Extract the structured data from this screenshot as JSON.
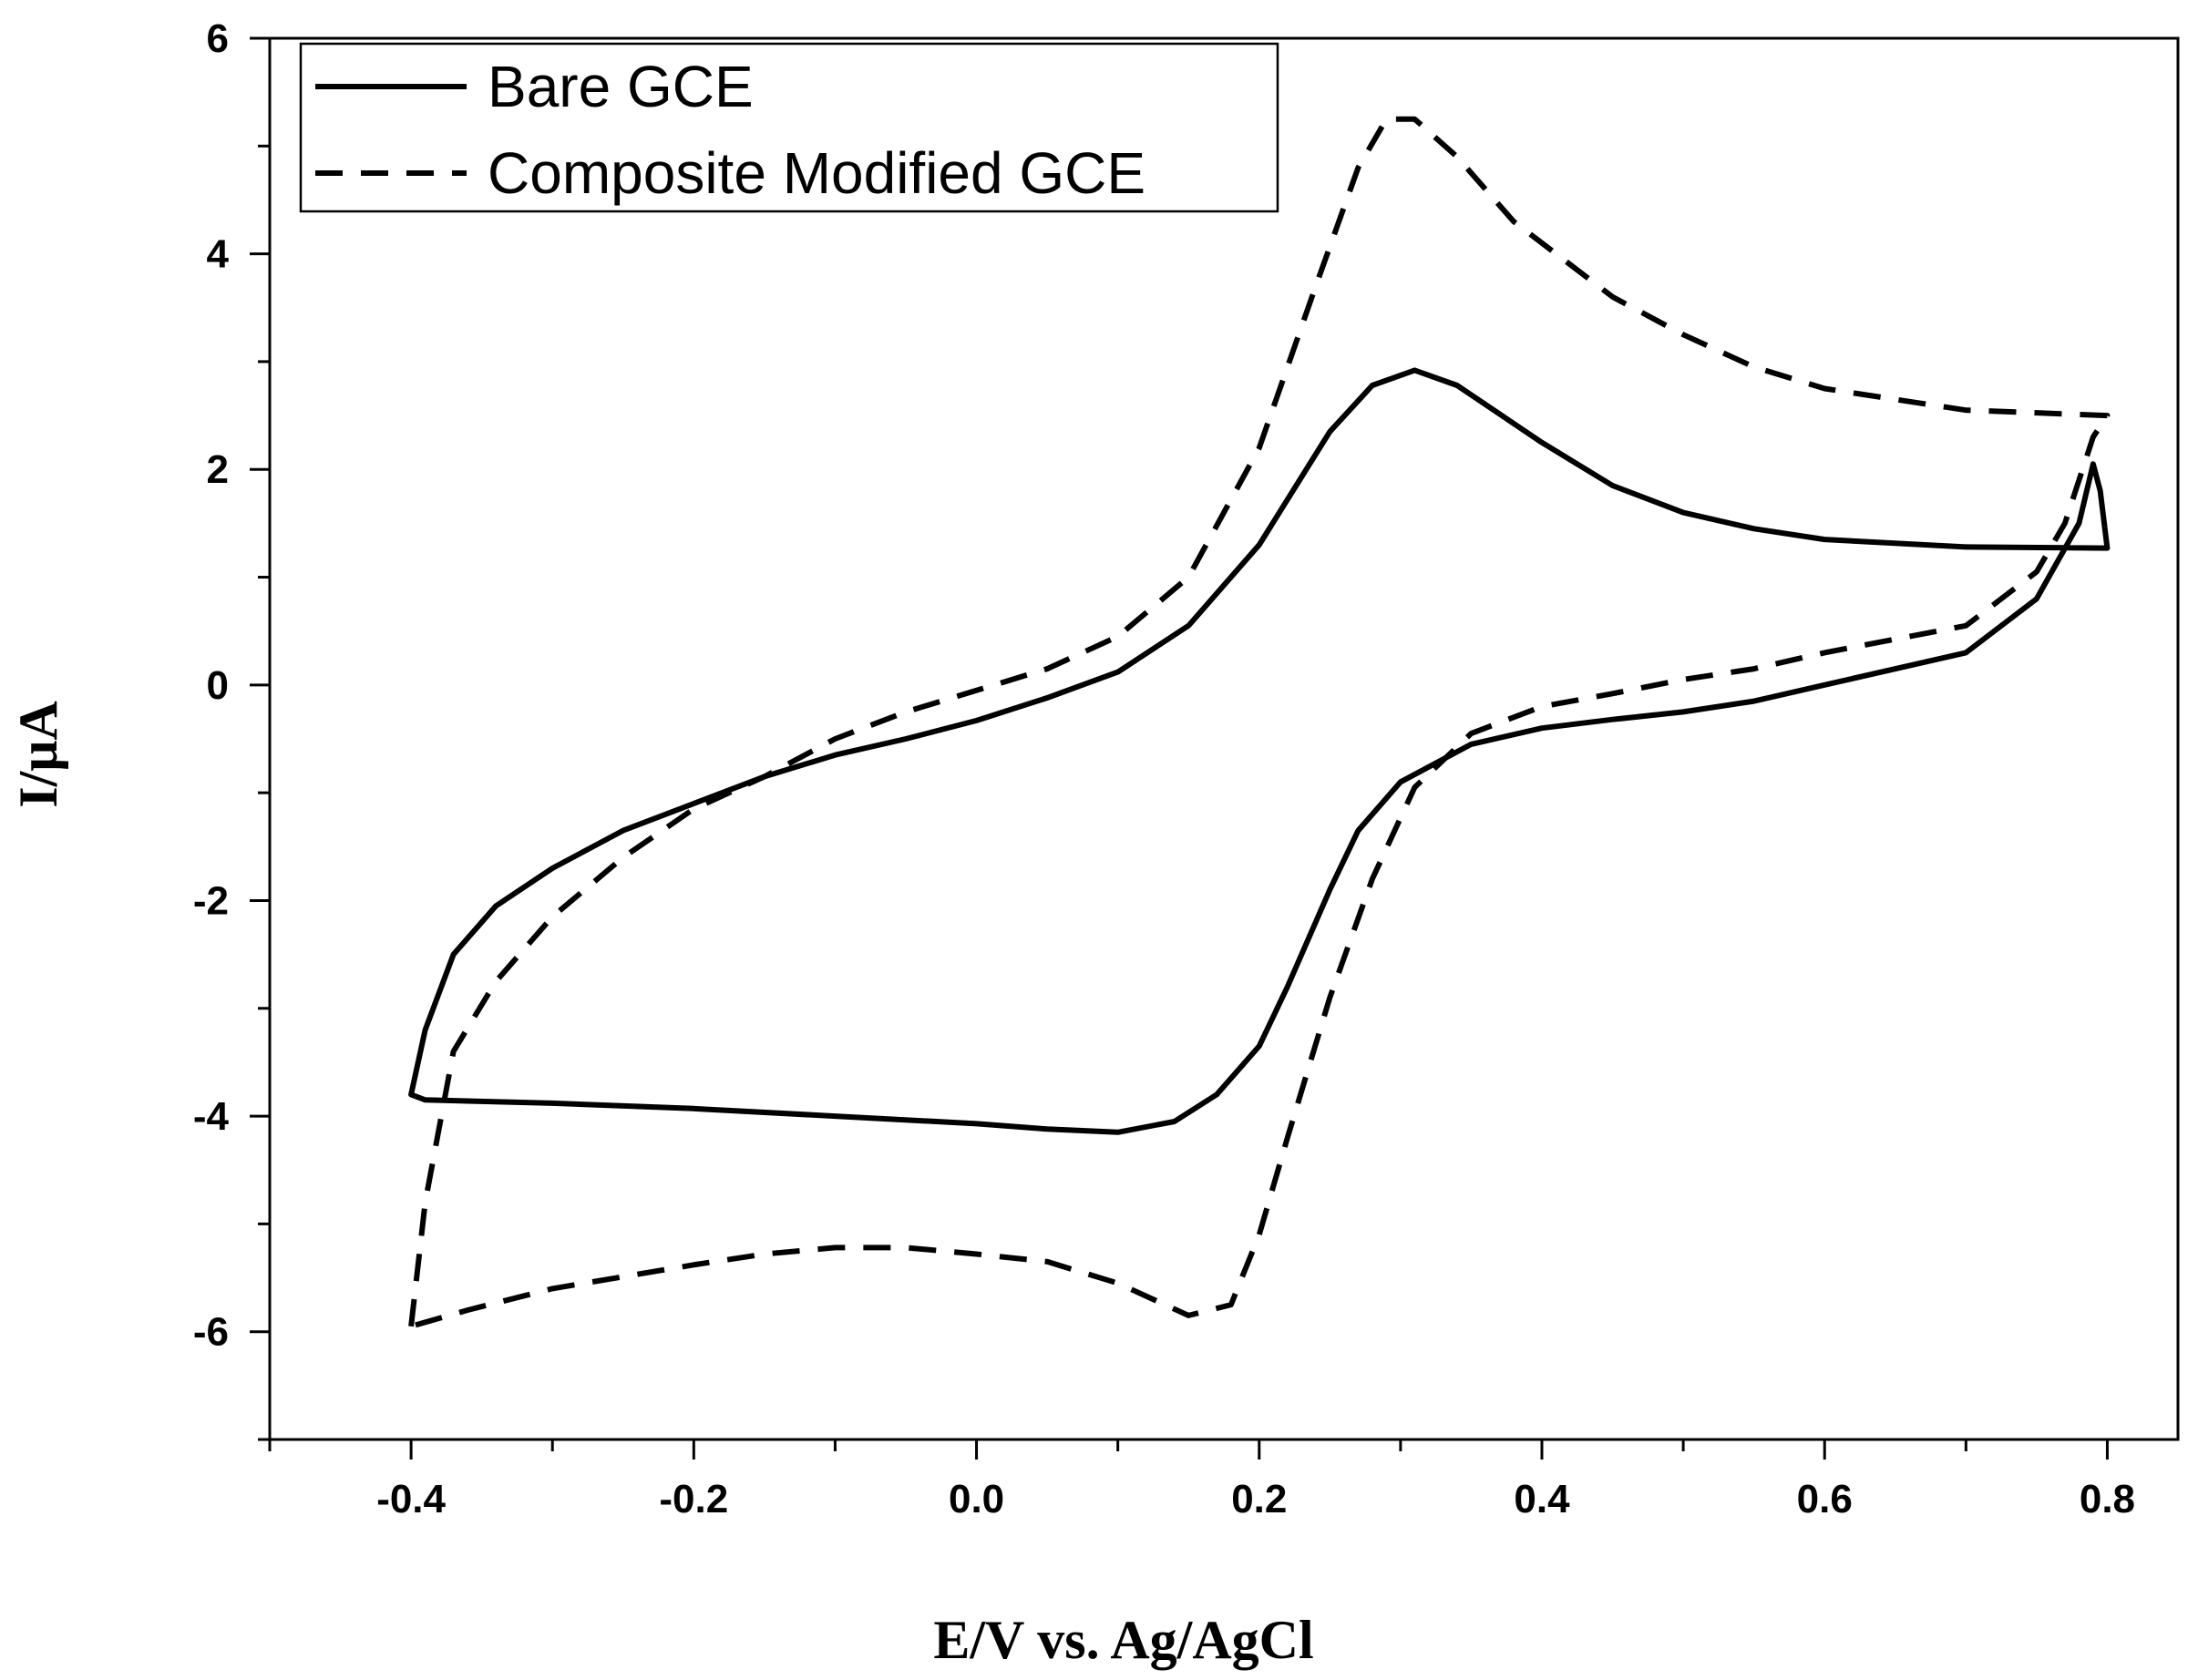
{
  "chart_data": {
    "type": "line",
    "title": "",
    "xlabel": "E/V vs. Ag/AgCl",
    "ylabel": "I/μA",
    "xlim": [
      -0.5,
      0.85
    ],
    "ylim": [
      -7,
      6
    ],
    "x_ticks": [
      "-0.4",
      "-0.2",
      "0.0",
      "0.2",
      "0.4",
      "0.6",
      "0.8"
    ],
    "x_tick_values": [
      -0.4,
      -0.2,
      0.0,
      0.2,
      0.4,
      0.6,
      0.8
    ],
    "y_ticks": [
      "6",
      "4",
      "2",
      "0",
      "-2",
      "-4",
      "-6"
    ],
    "y_tick_values": [
      6,
      4,
      2,
      0,
      -2,
      -4,
      -6
    ],
    "grid": false,
    "legend_position": "top-left",
    "series": [
      {
        "name": "Bare GCE",
        "line_style": "solid",
        "color": "#000000",
        "points": [
          [
            -0.4,
            -3.8
          ],
          [
            -0.39,
            -3.2
          ],
          [
            -0.37,
            -2.5
          ],
          [
            -0.34,
            -2.05
          ],
          [
            -0.3,
            -1.7
          ],
          [
            -0.25,
            -1.35
          ],
          [
            -0.2,
            -1.1
          ],
          [
            -0.15,
            -0.85
          ],
          [
            -0.1,
            -0.65
          ],
          [
            -0.05,
            -0.5
          ],
          [
            0.0,
            -0.33
          ],
          [
            0.05,
            -0.12
          ],
          [
            0.1,
            0.12
          ],
          [
            0.15,
            0.55
          ],
          [
            0.2,
            1.3
          ],
          [
            0.25,
            2.35
          ],
          [
            0.28,
            2.78
          ],
          [
            0.31,
            2.92
          ],
          [
            0.34,
            2.78
          ],
          [
            0.4,
            2.25
          ],
          [
            0.45,
            1.85
          ],
          [
            0.5,
            1.6
          ],
          [
            0.55,
            1.45
          ],
          [
            0.6,
            1.35
          ],
          [
            0.7,
            1.28
          ],
          [
            0.8,
            1.27
          ],
          [
            0.795,
            1.8
          ],
          [
            0.79,
            2.05
          ],
          [
            0.78,
            1.5
          ],
          [
            0.75,
            0.8
          ],
          [
            0.7,
            0.3
          ],
          [
            0.6,
            0.0
          ],
          [
            0.55,
            -0.15
          ],
          [
            0.5,
            -0.25
          ],
          [
            0.45,
            -0.32
          ],
          [
            0.4,
            -0.4
          ],
          [
            0.35,
            -0.55
          ],
          [
            0.3,
            -0.9
          ],
          [
            0.27,
            -1.35
          ],
          [
            0.25,
            -1.9
          ],
          [
            0.22,
            -2.8
          ],
          [
            0.2,
            -3.35
          ],
          [
            0.17,
            -3.8
          ],
          [
            0.14,
            -4.05
          ],
          [
            0.1,
            -4.15
          ],
          [
            0.05,
            -4.12
          ],
          [
            0.0,
            -4.07
          ],
          [
            -0.1,
            -4.0
          ],
          [
            -0.2,
            -3.93
          ],
          [
            -0.3,
            -3.88
          ],
          [
            -0.39,
            -3.85
          ],
          [
            -0.4,
            -3.8
          ]
        ]
      },
      {
        "name": "Composite Modified GCE",
        "line_style": "dashed",
        "color": "#000000",
        "points": [
          [
            -0.4,
            -5.95
          ],
          [
            -0.39,
            -4.8
          ],
          [
            -0.37,
            -3.4
          ],
          [
            -0.34,
            -2.75
          ],
          [
            -0.3,
            -2.15
          ],
          [
            -0.25,
            -1.6
          ],
          [
            -0.2,
            -1.15
          ],
          [
            -0.15,
            -0.85
          ],
          [
            -0.1,
            -0.5
          ],
          [
            -0.05,
            -0.25
          ],
          [
            0.0,
            -0.05
          ],
          [
            0.05,
            0.15
          ],
          [
            0.1,
            0.45
          ],
          [
            0.15,
            1.0
          ],
          [
            0.2,
            2.2
          ],
          [
            0.24,
            3.7
          ],
          [
            0.27,
            4.8
          ],
          [
            0.29,
            5.25
          ],
          [
            0.31,
            5.25
          ],
          [
            0.34,
            4.9
          ],
          [
            0.38,
            4.3
          ],
          [
            0.45,
            3.6
          ],
          [
            0.5,
            3.25
          ],
          [
            0.55,
            2.95
          ],
          [
            0.6,
            2.75
          ],
          [
            0.7,
            2.55
          ],
          [
            0.8,
            2.5
          ],
          [
            0.79,
            2.3
          ],
          [
            0.77,
            1.5
          ],
          [
            0.75,
            1.05
          ],
          [
            0.7,
            0.55
          ],
          [
            0.6,
            0.3
          ],
          [
            0.55,
            0.15
          ],
          [
            0.5,
            0.05
          ],
          [
            0.45,
            -0.08
          ],
          [
            0.4,
            -0.2
          ],
          [
            0.35,
            -0.45
          ],
          [
            0.31,
            -0.95
          ],
          [
            0.28,
            -1.8
          ],
          [
            0.25,
            -2.9
          ],
          [
            0.22,
            -4.2
          ],
          [
            0.2,
            -5.1
          ],
          [
            0.18,
            -5.75
          ],
          [
            0.15,
            -5.85
          ],
          [
            0.1,
            -5.55
          ],
          [
            0.05,
            -5.35
          ],
          [
            0.0,
            -5.28
          ],
          [
            -0.05,
            -5.22
          ],
          [
            -0.1,
            -5.22
          ],
          [
            -0.15,
            -5.28
          ],
          [
            -0.2,
            -5.38
          ],
          [
            -0.3,
            -5.6
          ],
          [
            -0.36,
            -5.8
          ],
          [
            -0.4,
            -5.95
          ]
        ]
      }
    ]
  }
}
